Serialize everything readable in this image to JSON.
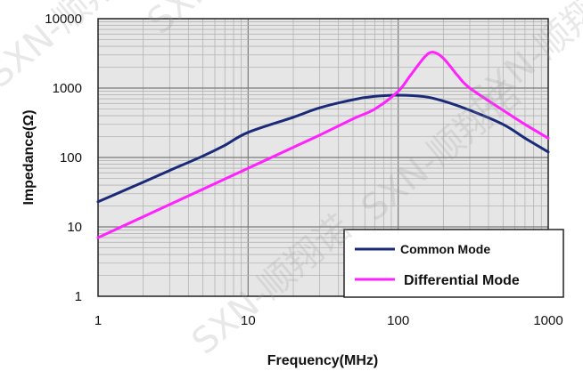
{
  "chart_data": {
    "type": "line",
    "xscale": "log",
    "yscale": "log",
    "xlim": [
      1,
      1000
    ],
    "ylim": [
      1,
      10000
    ],
    "xlabel": "Frequency(MHz)",
    "ylabel": "Impedance(Ω)",
    "x_ticks": [
      "1",
      "10",
      "100",
      "1000"
    ],
    "y_ticks": [
      "1",
      "10",
      "100",
      "1000",
      "10000"
    ],
    "grid": true,
    "legend_position": "bottom-right",
    "series": [
      {
        "name": "Common Mode",
        "color": "#1a2a78",
        "x": [
          1,
          2,
          3,
          5,
          7,
          10,
          20,
          30,
          50,
          70,
          100,
          150,
          200,
          300,
          500,
          700,
          1000
        ],
        "y": [
          23,
          44,
          65,
          105,
          150,
          230,
          380,
          520,
          680,
          760,
          790,
          750,
          650,
          480,
          300,
          190,
          120
        ]
      },
      {
        "name": "Differential Mode",
        "color": "#ff22ff",
        "x": [
          1,
          2,
          3,
          5,
          7,
          10,
          20,
          30,
          50,
          70,
          100,
          120,
          150,
          170,
          200,
          250,
          300,
          500,
          700,
          1000
        ],
        "y": [
          7,
          14,
          21,
          35,
          49,
          70,
          140,
          210,
          360,
          500,
          900,
          1500,
          2800,
          3300,
          2700,
          1500,
          1000,
          480,
          300,
          190
        ]
      }
    ]
  },
  "watermark": {
    "text": "SXN-顺翔诺"
  }
}
